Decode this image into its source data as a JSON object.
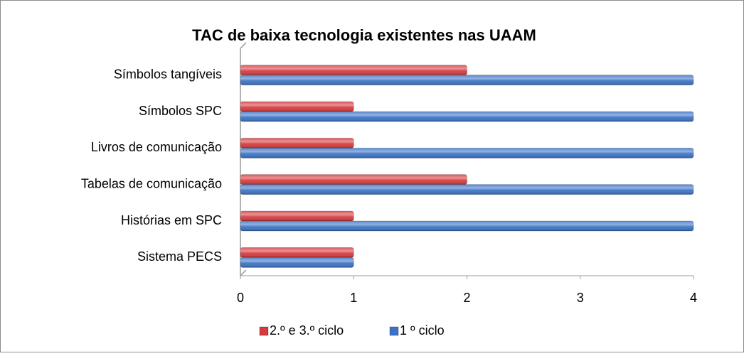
{
  "chart_data": {
    "type": "bar",
    "orientation": "horizontal",
    "title": "TAC de baixa tecnologia existentes nas UAAM",
    "categories": [
      "Símbolos tangíveis",
      "Símbolos SPC",
      "Livros de comunicação",
      "Tabelas de comunicação",
      "Histórias em SPC",
      "Sistema PECS"
    ],
    "series": [
      {
        "name": "2.º e 3.º ciclo",
        "color": "#d63b3e",
        "values": [
          2,
          1,
          1,
          2,
          1,
          1
        ]
      },
      {
        "name": "1 º ciclo",
        "color": "#3b73c6",
        "values": [
          4,
          4,
          4,
          4,
          4,
          1
        ]
      }
    ],
    "xlim": [
      0,
      4
    ],
    "xticks": [
      0,
      1,
      2,
      3,
      4
    ],
    "grid": false,
    "legend": "bottom"
  }
}
